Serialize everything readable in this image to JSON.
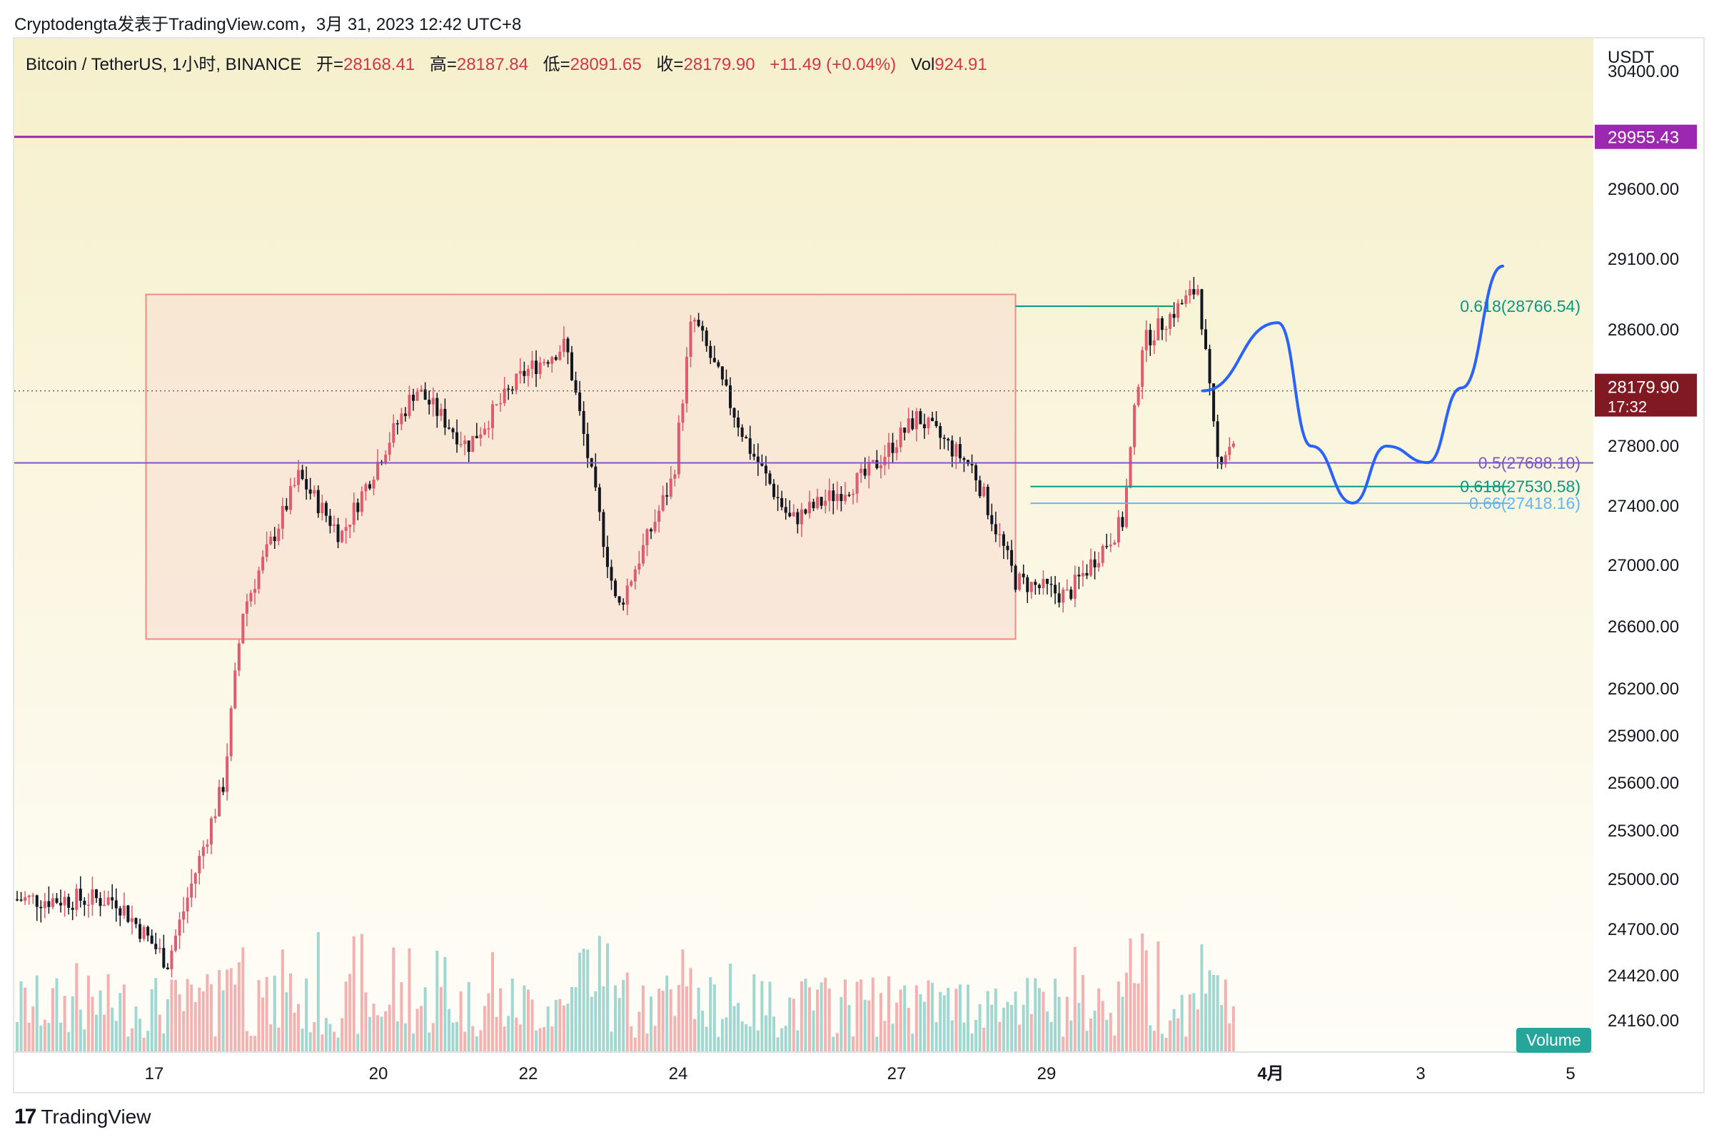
{
  "header": {
    "credit": "Cryptodengta发表于TradingView.com，3月 31, 2023 12:42 UTC+8"
  },
  "symbol_bar": {
    "pair": "Bitcoin / TetherUS, 1小时, BINANCE",
    "open_label": "开=",
    "open": "28168.41",
    "high_label": "高=",
    "high": "28187.84",
    "low_label": "低=",
    "low": "28091.65",
    "close_label": "收=",
    "close": "28179.90",
    "change": "+11.49 (+0.04%)",
    "vol_label": "Vol",
    "vol": "924.91"
  },
  "footer": {
    "brand": "TradingView",
    "logo_mark": "17"
  },
  "volume_label": "Volume",
  "colors": {
    "background_top": "#f6f0cc",
    "background_bottom": "#fffdf8",
    "range_box_fill": "#f8dccf",
    "range_box_border": "#f28b82",
    "up_candle": "#e05b6d",
    "down_candle": "#131722",
    "volume_up": "#ef9a9a",
    "volume_down": "#80cbc4",
    "resistance_line": "#9c27b0",
    "fib_05": "#7e57c2",
    "fib_0618": "#089981",
    "fib_066": "#64b5f6",
    "projection": "#2962ff",
    "last_price_bg": "#801922"
  },
  "chart_data": {
    "type": "candlestick",
    "ylabel": "USDT",
    "y_ticks": [
      "30400.00",
      "29600.00",
      "29100.00",
      "28600.00",
      "27800.00",
      "27400.00",
      "27000.00",
      "26600.00",
      "26200.00",
      "25900.00",
      "25600.00",
      "25300.00",
      "25000.00",
      "24700.00",
      "24420.00",
      "24160.00"
    ],
    "x_ticks": [
      "17",
      "20",
      "22",
      "24",
      "27",
      "29",
      "4月",
      "3",
      "5"
    ],
    "resistance": {
      "value": 29955.43,
      "label": "29955.43"
    },
    "last_price": {
      "value": 28179.9,
      "label": "28179.90",
      "countdown": "17:32"
    },
    "fib_levels": [
      {
        "ratio": "0.618",
        "value": 28766.54,
        "label": "0.618(28766.54)"
      },
      {
        "ratio": "0.5",
        "value": 27688.1,
        "label": "0.5(27688.10)"
      },
      {
        "ratio": "0.618",
        "value": 27530.58,
        "label": "0.618(27530.58)"
      },
      {
        "ratio": "0.66",
        "value": 27418.16,
        "label": "0.66(27418.16)"
      }
    ],
    "range_box": {
      "high": 28850,
      "low": 26520
    },
    "price_path": [
      {
        "x": "16 Mar",
        "price": 24880
      },
      {
        "x": "17 Mar",
        "price": 24500
      },
      {
        "x": "17 Mar",
        "price": 25600
      },
      {
        "x": "18 Mar",
        "price": 26700
      },
      {
        "x": "18 Mar",
        "price": 27600
      },
      {
        "x": "19 Mar",
        "price": 27200
      },
      {
        "x": "20 Mar",
        "price": 28200
      },
      {
        "x": "21 Mar",
        "price": 27800
      },
      {
        "x": "21 Mar",
        "price": 28300
      },
      {
        "x": "22 Mar",
        "price": 28500
      },
      {
        "x": "23 Mar",
        "price": 26700
      },
      {
        "x": "23 Mar",
        "price": 27600
      },
      {
        "x": "24 Mar",
        "price": 28700
      },
      {
        "x": "24 Mar",
        "price": 27800
      },
      {
        "x": "25 Mar",
        "price": 27300
      },
      {
        "x": "26 Mar",
        "price": 27600
      },
      {
        "x": "27 Mar",
        "price": 28000
      },
      {
        "x": "27 Mar",
        "price": 27650
      },
      {
        "x": "28 Mar",
        "price": 26900
      },
      {
        "x": "29 Mar",
        "price": 26800
      },
      {
        "x": "29 Mar",
        "price": 27300
      },
      {
        "x": "30 Mar",
        "price": 28500
      },
      {
        "x": "30 Mar",
        "price": 28900
      },
      {
        "x": "31 Mar",
        "price": 27700
      },
      {
        "x": "31 Mar",
        "price": 28180
      }
    ],
    "projection_path": [
      {
        "x": "31 Mar",
        "price": 28180
      },
      {
        "x": "1 Apr",
        "price": 28650
      },
      {
        "x": "1 Apr",
        "price": 27800
      },
      {
        "x": "2 Apr",
        "price": 27420
      },
      {
        "x": "2 Apr",
        "price": 27800
      },
      {
        "x": "3 Apr",
        "price": 27690
      },
      {
        "x": "3 Apr",
        "price": 28200
      },
      {
        "x": "4 Apr",
        "price": 29050
      }
    ]
  }
}
